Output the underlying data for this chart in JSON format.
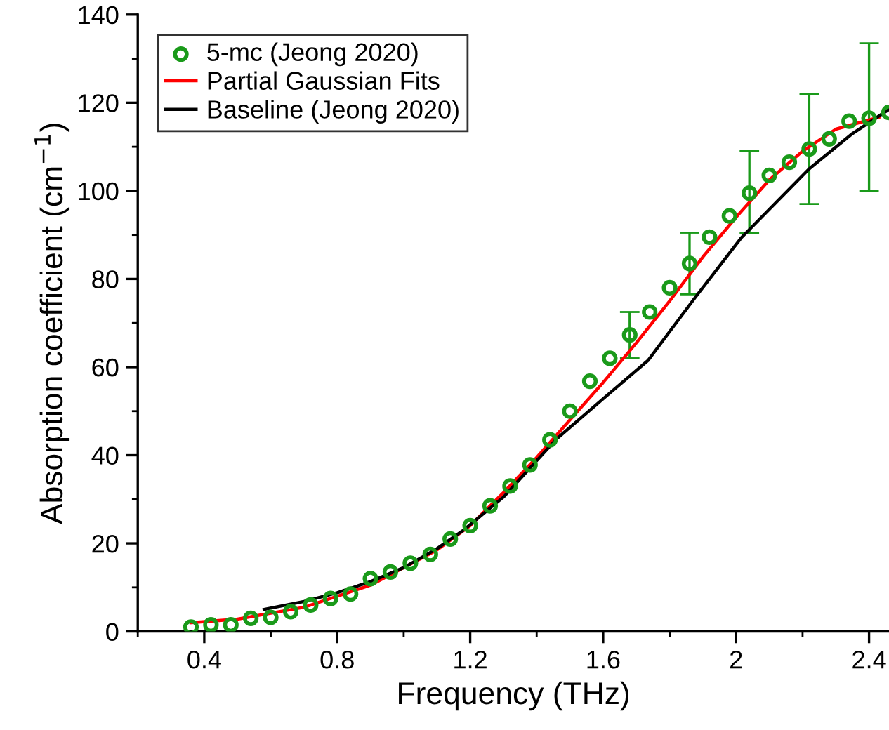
{
  "chart_data": {
    "type": "scatter",
    "xlabel": "Frequency (THz)",
    "ylabel": "Absorption coefficient (cm$^{−1}$)",
    "xlim": [
      0.2,
      2.46
    ],
    "ylim": [
      0,
      140
    ],
    "xticks": [
      0.4,
      0.8,
      1.2,
      1.6,
      2,
      2.4
    ],
    "yticks": [
      0,
      20,
      40,
      60,
      80,
      100,
      120,
      140
    ],
    "grid": false,
    "legend": "top left",
    "series": [
      {
        "name": "5-mc (Jeong 2020)",
        "marker": "circle",
        "color": "#1a9a1a",
        "x": [
          0.36,
          0.42,
          0.48,
          0.54,
          0.6,
          0.66,
          0.72,
          0.78,
          0.84,
          0.9,
          0.96,
          1.02,
          1.08,
          1.14,
          1.2,
          1.26,
          1.32,
          1.38,
          1.44,
          1.5,
          1.56,
          1.62,
          1.68,
          1.74,
          1.8,
          1.86,
          1.92,
          1.98,
          2.04,
          2.1,
          2.16,
          2.22,
          2.28,
          2.34,
          2.4,
          2.46
        ],
        "values": [
          1,
          1.5,
          1.5,
          3,
          3.2,
          4.5,
          6,
          7.5,
          8.5,
          12,
          13.5,
          15.5,
          17.5,
          21,
          24,
          28.5,
          33,
          37.8,
          43.5,
          50,
          56.8,
          62,
          67.3,
          72.5,
          78,
          83.5,
          89.5,
          94.3,
          99.5,
          103.5,
          106.5,
          109.5,
          111.8,
          115.8,
          116.5,
          117.8
        ],
        "errors": [
          null,
          null,
          null,
          null,
          null,
          null,
          null,
          null,
          null,
          null,
          null,
          null,
          null,
          null,
          null,
          null,
          null,
          null,
          null,
          null,
          null,
          null,
          [
            62,
            72.5
          ],
          null,
          null,
          [
            76.5,
            90.5
          ],
          null,
          null,
          [
            90.5,
            109
          ],
          null,
          null,
          [
            97,
            122
          ],
          null,
          null,
          [
            100,
            133.5
          ],
          null
        ]
      },
      {
        "name": "Partial Gaussian Fits",
        "type": "line",
        "color": "#ff0000",
        "x": [
          0.36,
          0.5,
          0.7,
          0.9,
          1.1,
          1.2,
          1.3,
          1.4,
          1.5,
          1.6,
          1.7,
          1.8,
          1.9,
          2.0,
          2.1,
          2.2,
          2.3,
          2.43
        ],
        "values": [
          2,
          2.8,
          5.5,
          10.5,
          18.5,
          24,
          31.5,
          39.5,
          48,
          56.5,
          65.5,
          75,
          85,
          94,
          102.5,
          109,
          114,
          116.7
        ]
      },
      {
        "name": "Baseline (Jeong 2020)",
        "type": "line",
        "color": "#000000",
        "x": [
          0.58,
          0.7,
          0.8,
          0.9,
          1.0,
          1.1,
          1.18,
          1.3,
          1.46,
          1.6,
          1.735,
          1.877,
          2.015,
          2.22,
          2.35,
          2.46
        ],
        "values": [
          5,
          6.8,
          8.8,
          11.3,
          14.5,
          18.8,
          23,
          30.5,
          43.7,
          52.8,
          61.5,
          75.8,
          89.3,
          105,
          113,
          118.5
        ]
      }
    ]
  }
}
